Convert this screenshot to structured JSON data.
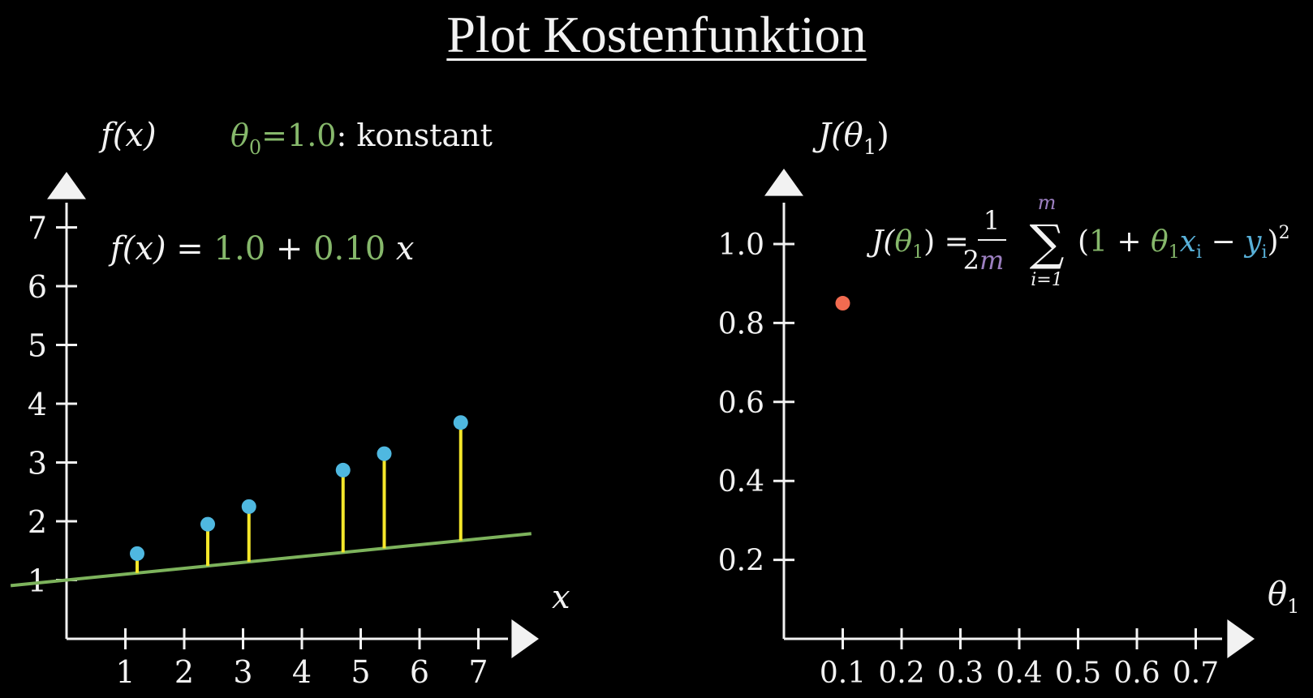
{
  "title": "Plot Kostenfunktion",
  "colors": {
    "background": "#000000",
    "axis": "#f2f2f2",
    "theta": "#86b86b",
    "line": "#7db35c",
    "residual": "#f5e72a",
    "point": "#4fb8e0",
    "cost_point": "#f26b50",
    "m_color": "#9c7fc0",
    "y_color": "#58b0d8"
  },
  "left_panel": {
    "y_axis_label": "f(x)",
    "x_axis_label": "x",
    "theta0_symbol": "θ",
    "theta0_sub": "0",
    "theta0_eq": "=",
    "theta0_value": "1.0",
    "theta0_suffix": ":  konstant",
    "formula": {
      "lhs": "f(x) =",
      "intercept": "1.0",
      "plus": "+",
      "slope": "0.10",
      "var": "x"
    }
  },
  "right_panel": {
    "y_axis_label_main": "J(θ",
    "y_axis_label_sub": "1",
    "y_axis_label_close": ")",
    "x_axis_label_main": "θ",
    "x_axis_label_sub": "1",
    "formula": {
      "J": "J(",
      "theta": "θ",
      "theta_sub": "1",
      "close_eq": ") =",
      "frac_num": "1",
      "frac_den_2": "2",
      "frac_den_m": "m",
      "sigma": "∑",
      "sum_top": "m",
      "sum_bottom": "i=1",
      "open": "(",
      "one": "1",
      "plus": " + ",
      "theta_x": "θ",
      "theta_x_sub": "1",
      "x": "x",
      "x_sub": "i",
      "minus": " − ",
      "y": "y",
      "y_sub": "i",
      "close": ")",
      "power": "2"
    }
  },
  "chart_data": [
    {
      "type": "scatter",
      "xlabel": "x",
      "ylabel": "f(x)",
      "xlim": [
        0,
        7.9
      ],
      "ylim": [
        0,
        7.7
      ],
      "x_ticks": [
        1,
        2,
        3,
        4,
        5,
        6,
        7
      ],
      "y_ticks": [
        1,
        2,
        3,
        4,
        5,
        6,
        7
      ],
      "series": [
        {
          "x": [
            1.2,
            2.4,
            3.1,
            4.7,
            5.4,
            6.7
          ],
          "y": [
            1.45,
            1.95,
            2.25,
            2.87,
            3.15,
            3.68
          ]
        }
      ],
      "line": {
        "intercept": 1.0,
        "slope": 0.1,
        "x_range": [
          -1,
          8
        ]
      }
    },
    {
      "type": "scatter",
      "xlabel": "θ1",
      "ylabel": "J(θ1)",
      "xlim": [
        0,
        0.8
      ],
      "ylim": [
        0,
        1.15
      ],
      "x_ticks": [
        "0.1",
        "0.2",
        "0.3",
        "0.4",
        "0.5",
        "0.6",
        "0.7"
      ],
      "y_ticks": [
        "0.2",
        "0.4",
        "0.6",
        "0.8",
        "1.0"
      ],
      "series": [
        {
          "x": [
            0.1
          ],
          "y": [
            0.85
          ]
        }
      ]
    }
  ]
}
